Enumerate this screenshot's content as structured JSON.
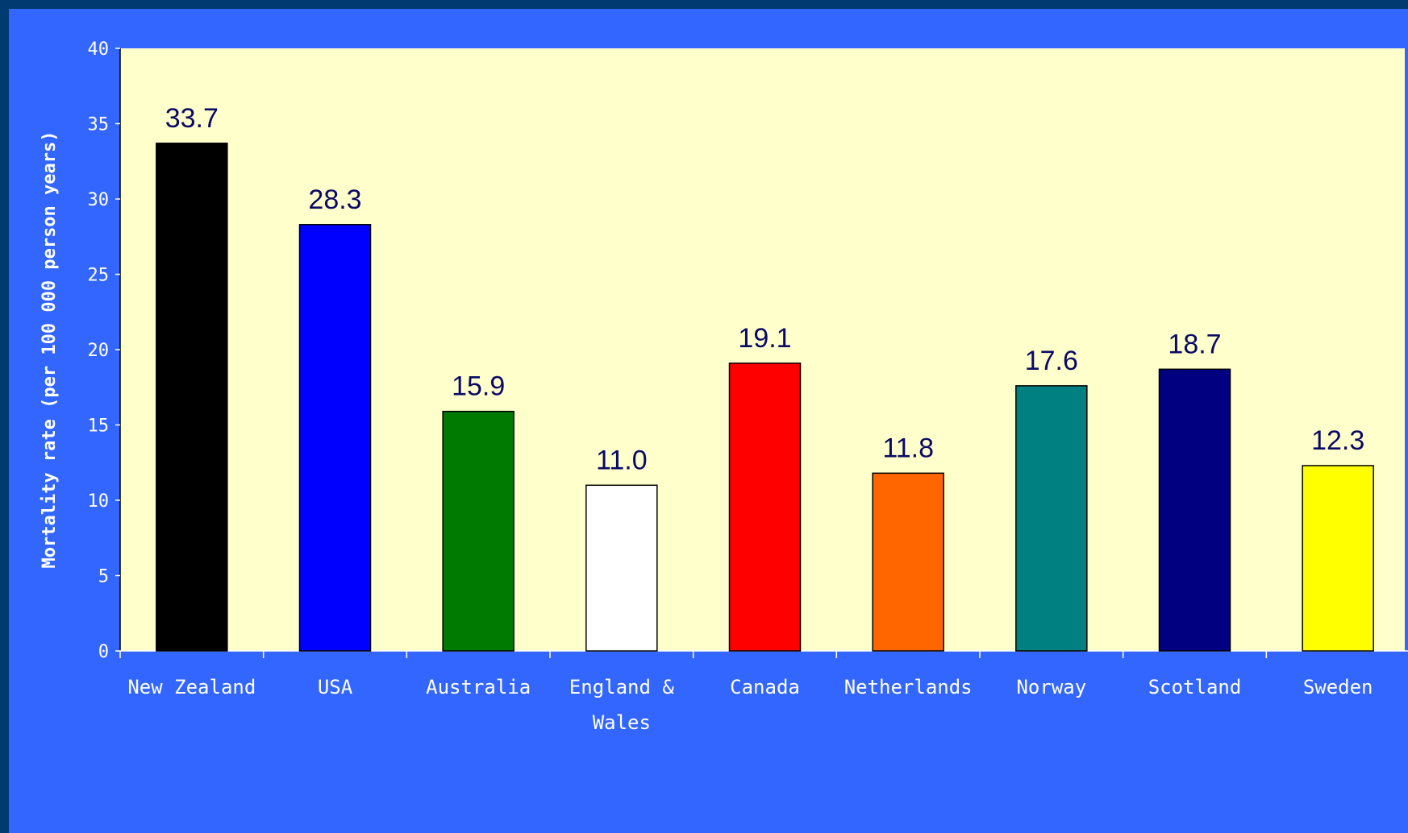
{
  "chart_data": {
    "type": "bar",
    "title": "",
    "xlabel": "",
    "ylabel": "Mortality rate (per 100 000 person years)",
    "ylim": [
      0,
      40
    ],
    "yticks": [
      0,
      5,
      10,
      15,
      20,
      25,
      30,
      35,
      40
    ],
    "grid": false,
    "categories": [
      "New Zealand",
      "USA",
      "Australia",
      "England & Wales",
      "Canada",
      "Netherlands",
      "Norway",
      "Scotland",
      "Sweden"
    ],
    "values": [
      33.7,
      28.3,
      15.9,
      11.0,
      19.1,
      11.8,
      17.6,
      18.7,
      12.3
    ],
    "data_labels": [
      "33.7",
      "28.3",
      "15.9",
      "11.0",
      "19.1",
      "11.8",
      "17.6",
      "18.7",
      "12.3"
    ],
    "colors": [
      "#000000",
      "#0000ff",
      "#007a00",
      "#ffffff",
      "#ff0000",
      "#ff6600",
      "#008080",
      "#000080",
      "#ffff00"
    ]
  },
  "colors": {
    "outer_frame": "#003a70",
    "slide_background": "#3366ff",
    "plot_background": "#ffffcc",
    "data_label_text": "#0a0a66",
    "axis_text": "#ffffff"
  }
}
